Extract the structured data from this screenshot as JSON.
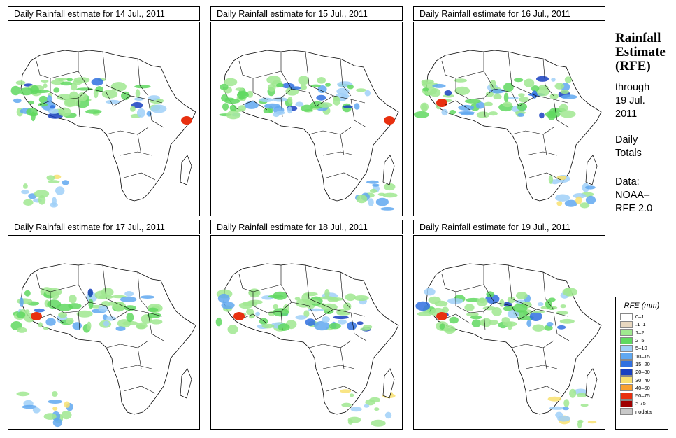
{
  "panels": [
    {
      "title": "Daily Rainfall estimate for  14 Jul., 2011"
    },
    {
      "title": "Daily Rainfall estimate for  15 Jul., 2011"
    },
    {
      "title": "Daily Rainfall estimate for  16 Jul., 2011"
    },
    {
      "title": "Daily Rainfall estimate for  17 Jul., 2011"
    },
    {
      "title": "Daily Rainfall estimate for  18 Jul., 2011"
    },
    {
      "title": "Daily Rainfall estimate for  19 Jul., 2011"
    }
  ],
  "side": {
    "title_line1": "Rainfall",
    "title_line2": "Estimate",
    "title_line3": "(RFE)",
    "through_label": "through",
    "through_date_line1": "19 Jul.",
    "through_date_line2": "2011",
    "totals_line1": "Daily",
    "totals_line2": "Totals",
    "data_label": "Data:",
    "data_source_line1": "NOAA–",
    "data_source_line2": "RFE 2.0"
  },
  "legend": {
    "title": "RFE (mm)",
    "items": [
      {
        "label": "0–1",
        "color": "#ffffff"
      },
      {
        "label": ".1–1",
        "color": "#e8d8c0"
      },
      {
        "label": "1–2",
        "color": "#a0e890"
      },
      {
        "label": "2–5",
        "color": "#60d860"
      },
      {
        "label": "5–10",
        "color": "#a0d0f8"
      },
      {
        "label": "10–15",
        "color": "#60a8f0"
      },
      {
        "label": "15–20",
        "color": "#3070e0"
      },
      {
        "label": "20–30",
        "color": "#1840c0"
      },
      {
        "label": "30–40",
        "color": "#f8e070"
      },
      {
        "label": "40–50",
        "color": "#f8a030"
      },
      {
        "label": "50–75",
        "color": "#e83010"
      },
      {
        "label": "> 75",
        "color": "#a00000"
      },
      {
        "label": "nodata",
        "color": "#c8c8c8"
      }
    ]
  }
}
